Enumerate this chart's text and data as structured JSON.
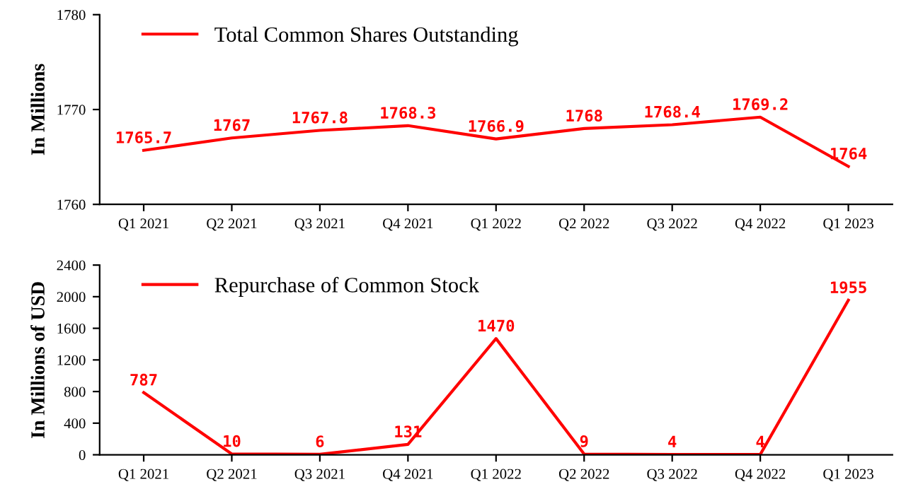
{
  "chart_data": [
    {
      "type": "line",
      "ylabel": "In Millions",
      "categories": [
        "Q1 2021",
        "Q2 2021",
        "Q3 2021",
        "Q4 2021",
        "Q1 2022",
        "Q2 2022",
        "Q3 2022",
        "Q4 2022",
        "Q1 2023"
      ],
      "series": [
        {
          "name": "Total Common Shares Outstanding",
          "color": "#ff0000",
          "values": [
            1765.7,
            1767,
            1767.8,
            1768.3,
            1766.9,
            1768,
            1768.4,
            1769.2,
            1764
          ]
        }
      ],
      "ylim": [
        1760,
        1780
      ],
      "yticks": [
        1760,
        1770,
        1780
      ],
      "data_labels": true,
      "legend": "top left",
      "grid": false
    },
    {
      "type": "line",
      "ylabel": "In Millions of USD",
      "categories": [
        "Q1 2021",
        "Q2 2021",
        "Q3 2021",
        "Q4 2021",
        "Q1 2022",
        "Q2 2022",
        "Q3 2022",
        "Q4 2022",
        "Q1 2023"
      ],
      "series": [
        {
          "name": "Repurchase of Common Stock",
          "color": "#ff0000",
          "values": [
            787,
            10,
            6,
            131,
            1470,
            9,
            4,
            4,
            1955
          ]
        }
      ],
      "ylim": [
        0,
        2400
      ],
      "yticks": [
        0,
        400,
        800,
        1200,
        1600,
        2000,
        2400
      ],
      "data_labels": true,
      "legend": "top left",
      "grid": false
    }
  ]
}
